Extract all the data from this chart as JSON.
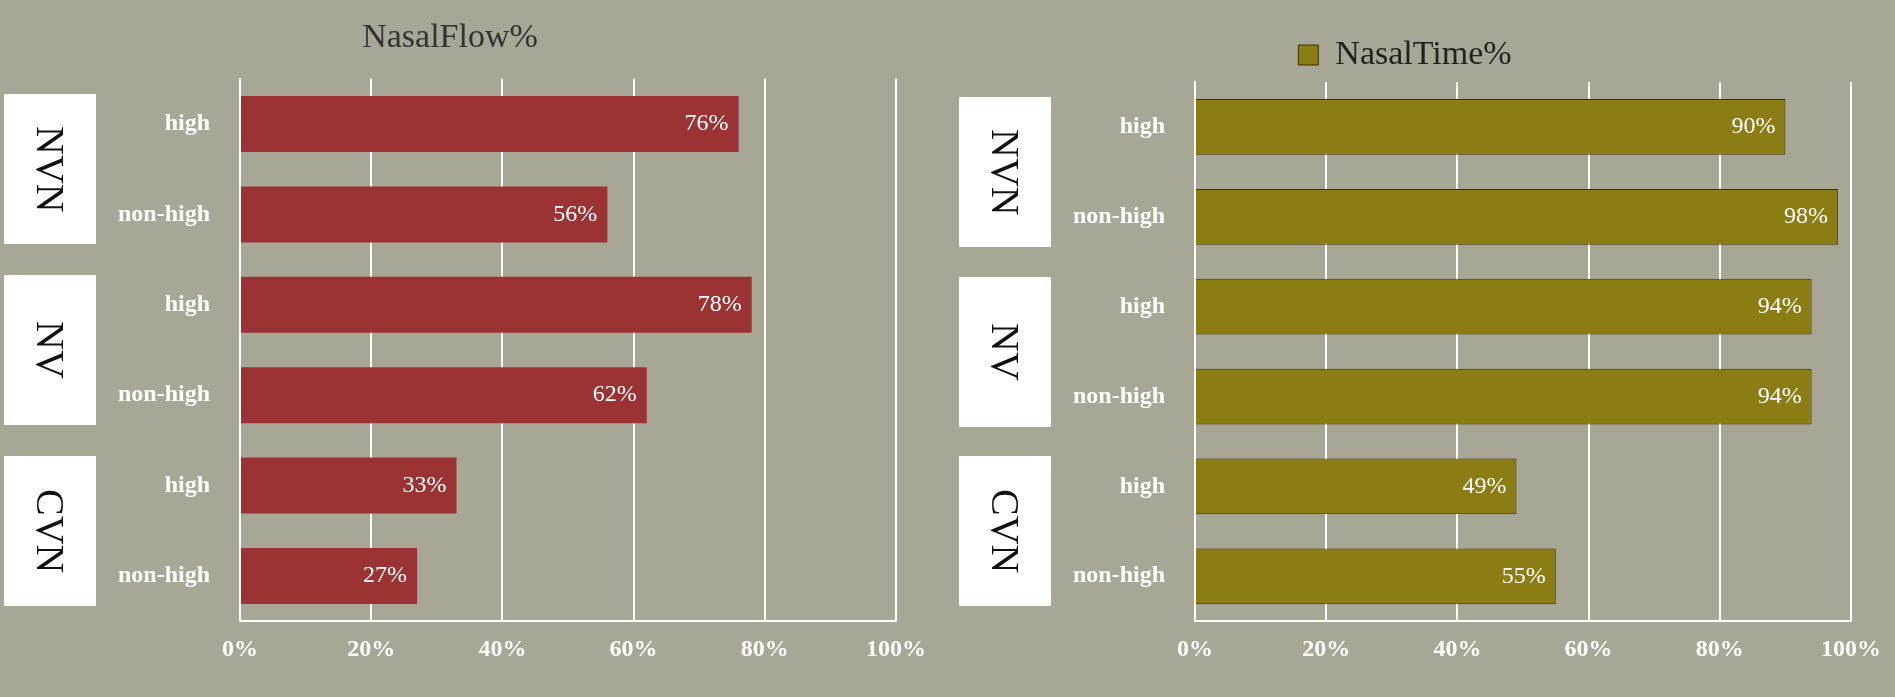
{
  "chart_data": [
    {
      "type": "bar",
      "orientation": "horizontal",
      "title": "NasalFlow%",
      "categories": [
        "high",
        "non-high",
        "high",
        "non-high",
        "high",
        "non-high"
      ],
      "values": [
        76,
        56,
        78,
        62,
        33,
        27
      ],
      "value_labels": [
        "76%",
        "56%",
        "78%",
        "62%",
        "33%",
        "27%"
      ],
      "color": "#9b3335",
      "xlim": [
        0,
        100
      ],
      "xticks": [
        {
          "value": 0,
          "label": "0%"
        },
        {
          "value": 20,
          "label": "20%"
        },
        {
          "value": 40,
          "label": "40%"
        },
        {
          "value": 60,
          "label": "60%"
        },
        {
          "value": 80,
          "label": "80%"
        },
        {
          "value": 100,
          "label": "100%"
        }
      ],
      "grid": "x",
      "annotations": [
        "NVN",
        "NV",
        "CVN"
      ]
    },
    {
      "type": "bar",
      "orientation": "horizontal",
      "categories": [
        "high",
        "non-high",
        "high",
        "non-high",
        "high",
        "non-high"
      ],
      "series": [
        {
          "name": "NasalTime%",
          "color": "#8c7c14",
          "values": [
            90,
            98,
            94,
            94,
            49,
            55
          ],
          "value_labels": [
            "90%",
            "98%",
            "94%",
            "94%",
            "49%",
            "55%"
          ]
        }
      ],
      "xlim": [
        0,
        100
      ],
      "xticks": [
        {
          "value": 0,
          "label": "0%"
        },
        {
          "value": 20,
          "label": "20%"
        },
        {
          "value": 40,
          "label": "40%"
        },
        {
          "value": 60,
          "label": "60%"
        },
        {
          "value": 80,
          "label": "80%"
        },
        {
          "value": 100,
          "label": "100%"
        }
      ],
      "grid": "x",
      "legend": "top",
      "annotations": [
        "NVN",
        "NV",
        "CVN"
      ]
    }
  ]
}
